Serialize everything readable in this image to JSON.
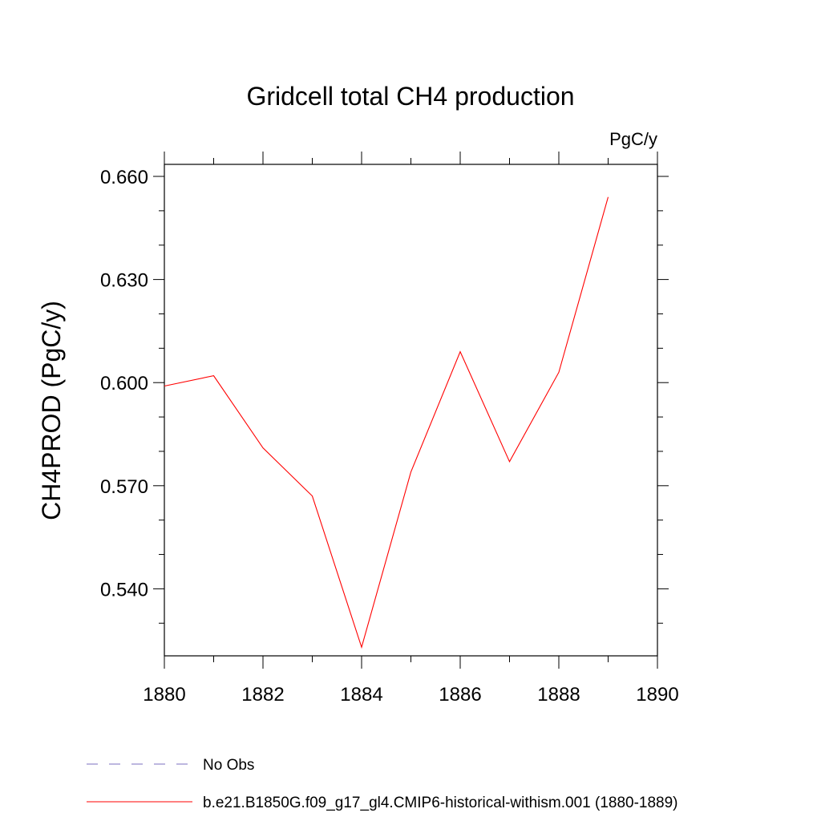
{
  "chart_data": {
    "type": "line",
    "title": "Gridcell total CH4 production",
    "units_label": "PgC/y",
    "xlabel": "",
    "ylabel": "CH4PROD  (PgC/y)",
    "xlim": [
      1880,
      1890
    ],
    "ylim": [
      0.5205,
      0.6635
    ],
    "x_ticks": [
      1880,
      1882,
      1884,
      1886,
      1888,
      1890
    ],
    "x_tick_labels": [
      "1880",
      "1882",
      "1884",
      "1886",
      "1888",
      "1890"
    ],
    "y_ticks": [
      0.54,
      0.57,
      0.6,
      0.63,
      0.66
    ],
    "y_tick_labels": [
      "0.540",
      "0.570",
      "0.600",
      "0.630",
      "0.660"
    ],
    "grid": false,
    "legend_position": "bottom-left, below plot",
    "series": [
      {
        "name": "No Obs",
        "color": "#7b6fbf",
        "dash": true,
        "x": [],
        "values": []
      },
      {
        "name": "b.e21.B1850G.f09_g17_gl4.CMIP6-historical-withism.001 (1880-1889)",
        "color": "#ff0000",
        "dash": false,
        "x": [
          1880,
          1881,
          1882,
          1883,
          1884,
          1885,
          1886,
          1887,
          1888,
          1889
        ],
        "values": [
          0.599,
          0.602,
          0.581,
          0.567,
          0.523,
          0.574,
          0.609,
          0.577,
          0.603,
          0.654
        ]
      }
    ]
  }
}
